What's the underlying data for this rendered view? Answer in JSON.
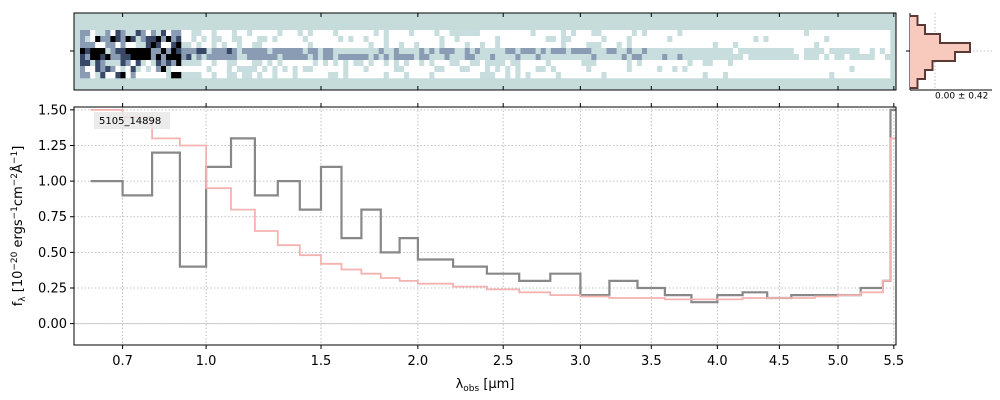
{
  "chart_data": [
    {
      "type": "heatmap",
      "name": "spectrum-2d",
      "cmap": [
        "#ffffff",
        "#c8dede",
        "#8a9cb4",
        "#3a4868",
        "#000000"
      ],
      "bg_color": "#c5dcdb",
      "rows": 8
    },
    {
      "type": "line",
      "name": "spectrum-1d",
      "xlabel_main": "λ",
      "xlabel_sub": "obs",
      "xlabel_unit": "[μm]",
      "ylabel": "f_λ [10^-20 ergs^-1 cm^-2 Å^-1]",
      "ylim": [
        -0.15,
        1.52
      ],
      "xlim": [
        0.55,
        5.52
      ],
      "x_axis": "sqrt-like warped wavelength",
      "y_ticks": [
        0.0,
        0.25,
        0.5,
        0.75,
        1.0,
        1.25,
        1.5
      ],
      "x_ticks": [
        0.7,
        1.0,
        1.5,
        2.0,
        2.5,
        3.0,
        3.5,
        4.0,
        4.5,
        5.0,
        5.5
      ],
      "x_tick_labels": [
        "0.7",
        "1.0",
        "1.5",
        "2.0",
        "2.5",
        "3.0",
        "3.5",
        "4.0",
        "4.5",
        "5.0",
        "5.5"
      ],
      "y_tick_labels": [
        "0.00",
        "0.25",
        "0.50",
        "0.75",
        "1.00",
        "1.25",
        "1.50"
      ],
      "grid": true,
      "annotation": "5105_14898",
      "series": [
        {
          "color": "#888888",
          "style": "steps",
          "x": [
            0.6,
            0.7,
            0.8,
            0.9,
            1.0,
            1.1,
            1.2,
            1.3,
            1.4,
            1.5,
            1.6,
            1.7,
            1.8,
            1.9,
            2.0,
            2.2,
            2.4,
            2.6,
            2.8,
            3.0,
            3.2,
            3.4,
            3.6,
            3.8,
            4.0,
            4.2,
            4.4,
            4.6,
            4.8,
            5.0,
            5.2,
            5.4,
            5.47
          ],
          "y": [
            1.0,
            0.9,
            1.2,
            0.4,
            1.1,
            1.3,
            0.9,
            1.0,
            0.8,
            1.1,
            0.6,
            0.8,
            0.5,
            0.6,
            0.45,
            0.4,
            0.35,
            0.3,
            0.35,
            0.2,
            0.3,
            0.25,
            0.2,
            0.15,
            0.2,
            0.22,
            0.18,
            0.2,
            0.2,
            0.2,
            0.25,
            0.3,
            1.5
          ]
        },
        {
          "color": "#f4b3b0",
          "style": "steps",
          "x": [
            0.6,
            0.7,
            0.8,
            0.9,
            1.0,
            1.1,
            1.2,
            1.3,
            1.4,
            1.5,
            1.6,
            1.7,
            1.8,
            1.9,
            2.0,
            2.2,
            2.4,
            2.6,
            2.8,
            3.0,
            3.2,
            3.4,
            3.6,
            3.8,
            4.0,
            4.2,
            4.4,
            4.6,
            4.8,
            5.0,
            5.2,
            5.4,
            5.47
          ],
          "y": [
            1.5,
            1.45,
            1.3,
            1.25,
            0.95,
            0.8,
            0.65,
            0.55,
            0.48,
            0.42,
            0.38,
            0.35,
            0.32,
            0.3,
            0.28,
            0.26,
            0.24,
            0.22,
            0.2,
            0.19,
            0.18,
            0.18,
            0.17,
            0.17,
            0.17,
            0.18,
            0.18,
            0.18,
            0.19,
            0.2,
            0.22,
            0.3,
            1.3
          ]
        }
      ]
    },
    {
      "type": "bar",
      "name": "residual-histogram",
      "label": "0.00 ± 0.42",
      "values": [
        1,
        2,
        4,
        8,
        6,
        3,
        2,
        1
      ],
      "fill_color": "#f8c9bd",
      "line_color": "#5b3a36"
    }
  ]
}
